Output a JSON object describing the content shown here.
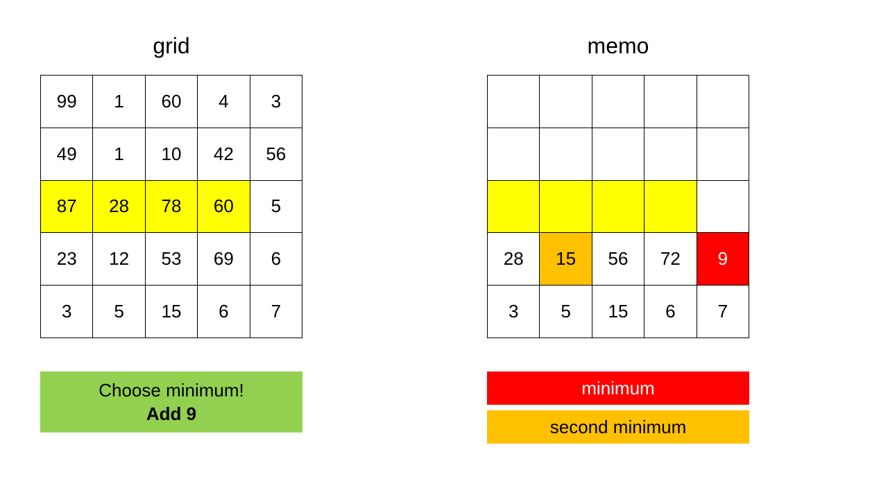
{
  "titles": {
    "left": "grid",
    "right": "memo"
  },
  "colors": {
    "highlight_row": "#ffff00",
    "minimum": "#ff0000",
    "second_minimum": "#ffc000",
    "action_box": "#92d050"
  },
  "grid": {
    "rows": [
      [
        "99",
        "1",
        "60",
        "4",
        "3"
      ],
      [
        "49",
        "1",
        "10",
        "42",
        "56"
      ],
      [
        "87",
        "28",
        "78",
        "60",
        "5"
      ],
      [
        "23",
        "12",
        "53",
        "69",
        "6"
      ],
      [
        "3",
        "5",
        "15",
        "6",
        "7"
      ]
    ],
    "highlights": [
      [
        "",
        "",
        "",
        "",
        ""
      ],
      [
        "",
        "",
        "",
        "",
        ""
      ],
      [
        "yellow",
        "yellow",
        "yellow",
        "yellow",
        ""
      ],
      [
        "",
        "",
        "",
        "",
        ""
      ],
      [
        "",
        "",
        "",
        "",
        ""
      ]
    ]
  },
  "memo": {
    "rows": [
      [
        "",
        "",
        "",
        "",
        ""
      ],
      [
        "",
        "",
        "",
        "",
        ""
      ],
      [
        "",
        "",
        "",
        "",
        ""
      ],
      [
        "28",
        "15",
        "56",
        "72",
        "9"
      ],
      [
        "3",
        "5",
        "15",
        "6",
        "7"
      ]
    ],
    "highlights": [
      [
        "",
        "",
        "",
        "",
        ""
      ],
      [
        "",
        "",
        "",
        "",
        ""
      ],
      [
        "yellow",
        "yellow",
        "yellow",
        "yellow",
        ""
      ],
      [
        "",
        "orange",
        "",
        "",
        "red"
      ],
      [
        "",
        "",
        "",
        "",
        ""
      ]
    ]
  },
  "action": {
    "line1": "Choose minimum!",
    "line2": "Add 9"
  },
  "legend": {
    "minimum": "minimum",
    "second_minimum": "second minimum"
  }
}
